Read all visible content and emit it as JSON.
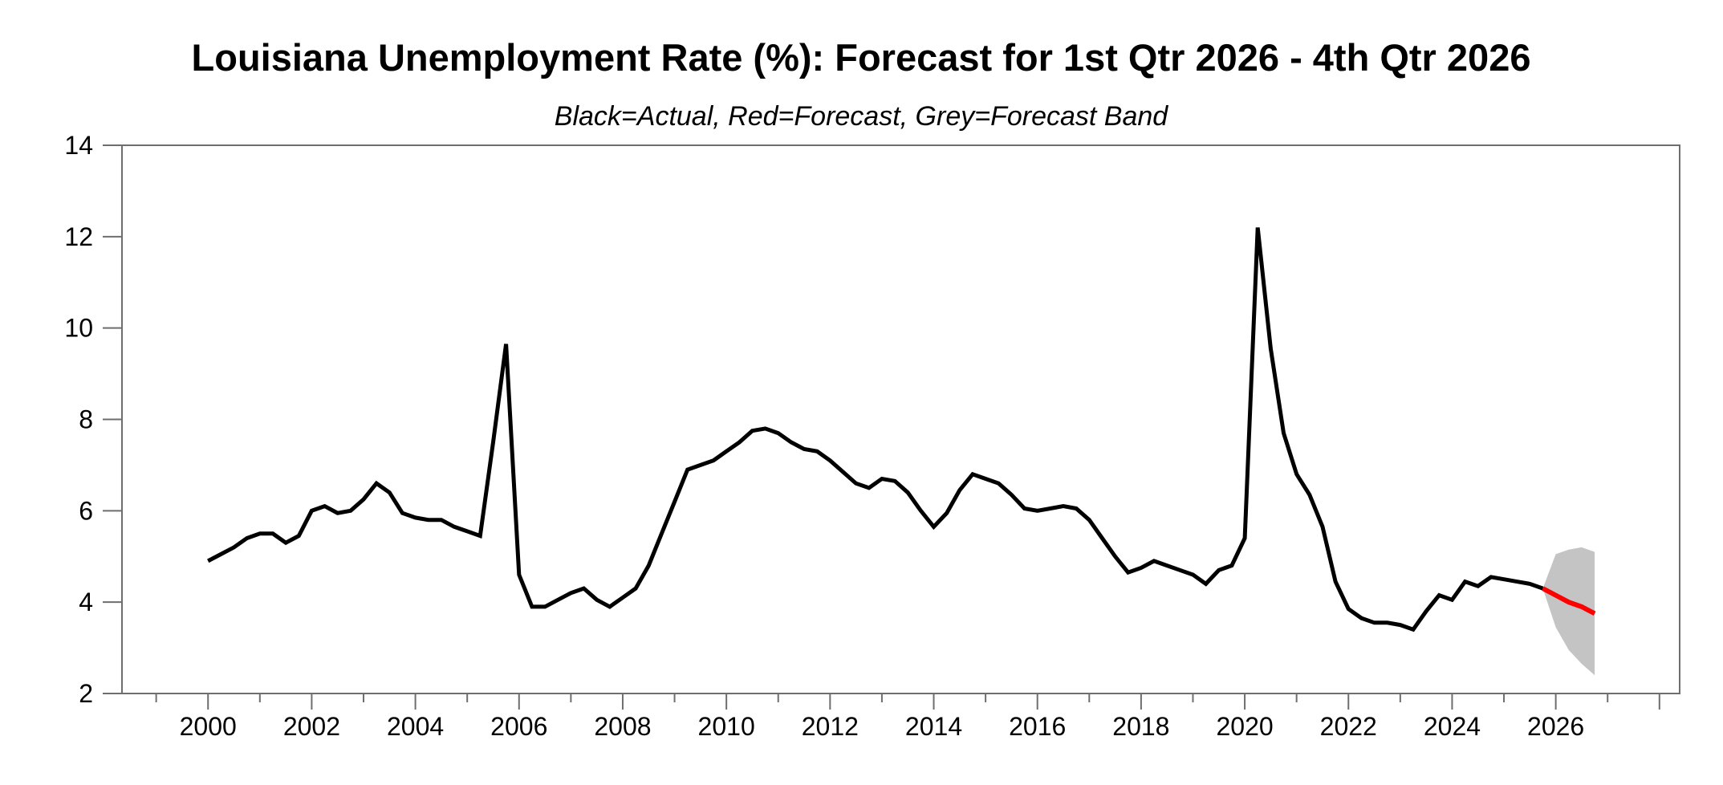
{
  "chart_data": {
    "type": "line",
    "title": "Louisiana Unemployment Rate (%): Forecast for 1st Qtr 2026 - 4th Qtr 2026",
    "subtitle": "Black=Actual, Red=Forecast, Grey=Forecast Band",
    "xlabel": "",
    "ylabel": "",
    "ylim": [
      2,
      14
    ],
    "y_ticks": [
      2,
      4,
      6,
      8,
      10,
      12,
      14
    ],
    "x_range": [
      1998.34,
      2028.39
    ],
    "x_major_ticks": [
      2000,
      2002,
      2004,
      2006,
      2008,
      2010,
      2012,
      2014,
      2016,
      2018,
      2020,
      2022,
      2024,
      2026
    ],
    "x_minor_ticks": [
      1999,
      2001,
      2003,
      2005,
      2007,
      2009,
      2011,
      2013,
      2015,
      2017,
      2019,
      2021,
      2023,
      2025,
      2027
    ],
    "x_edge_ticks": [
      2028
    ],
    "grid": false,
    "legend_position": "none",
    "frequency": "quarterly",
    "background_color": "#ffffff",
    "axis_color": "#6e6e6e",
    "text_color": "#000000",
    "series": [
      {
        "name": "Actual",
        "color": "#000000",
        "line_width": 5,
        "start": 2000.0,
        "step": 0.25,
        "values": [
          4.9,
          5.05,
          5.2,
          5.4,
          5.5,
          5.5,
          5.3,
          5.45,
          6.0,
          6.1,
          5.95,
          6.0,
          6.25,
          6.6,
          6.4,
          5.95,
          5.85,
          5.8,
          5.8,
          5.65,
          5.55,
          5.45,
          7.5,
          9.65,
          4.6,
          3.9,
          3.9,
          4.05,
          4.2,
          4.3,
          4.05,
          3.9,
          4.1,
          4.3,
          4.8,
          5.5,
          6.2,
          6.9,
          7.0,
          7.1,
          7.3,
          7.5,
          7.75,
          7.8,
          7.7,
          7.5,
          7.35,
          7.3,
          7.1,
          6.85,
          6.6,
          6.5,
          6.7,
          6.65,
          6.4,
          6.0,
          5.65,
          5.95,
          6.45,
          6.8,
          6.7,
          6.6,
          6.35,
          6.05,
          6.0,
          6.05,
          6.1,
          6.05,
          5.8,
          5.4,
          5.0,
          4.65,
          4.75,
          4.9,
          4.8,
          4.7,
          4.6,
          4.4,
          4.7,
          4.8,
          5.4,
          12.2,
          9.55,
          7.7,
          6.8,
          6.35,
          5.65,
          4.45,
          3.85,
          3.65,
          3.55,
          3.55,
          3.5,
          3.4,
          3.8,
          4.15,
          4.05,
          4.45,
          4.35,
          4.55,
          4.5,
          4.45,
          4.4,
          4.3
        ]
      },
      {
        "name": "Forecast",
        "color": "#ff0000",
        "line_width": 6,
        "start": 2025.75,
        "step": 0.25,
        "values": [
          4.3,
          4.15,
          4.0,
          3.9,
          3.75
        ]
      }
    ],
    "band": {
      "name": "Forecast Band",
      "color": "#c4c4c4",
      "start": 2025.75,
      "step": 0.25,
      "upper": [
        4.3,
        5.05,
        5.15,
        5.2,
        5.1
      ],
      "lower": [
        4.3,
        3.45,
        2.95,
        2.65,
        2.4
      ]
    }
  }
}
